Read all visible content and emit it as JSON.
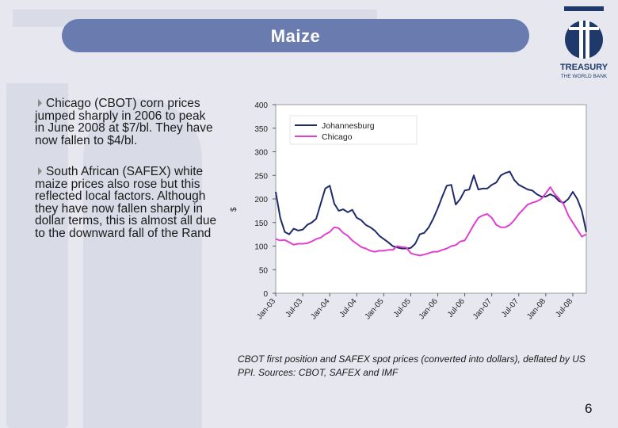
{
  "slide": {
    "title": "Maize",
    "page_number": "6",
    "bullets": [
      "Chicago (CBOT) corn prices jumped sharply in 2006 to peak in June 2008 at $7/bl. They have now fallen to $4/bl.",
      "South African (SAFEX) white maize prices also rose but this reflected local factors. Although they have now fallen sharply in dollar terms, this is almost all due to the downward fall of the Rand"
    ],
    "caption": "CBOT first position and SAFEX spot prices (converted into dollars), deflated by US PPI. Sources: CBOT, SAFEX and IMF",
    "logo": {
      "line1": "TREASURY",
      "line2": "THE WORLD BANK",
      "icon": "treasury-logo-icon"
    }
  },
  "colors": {
    "title_bar": "#6a7bb0",
    "johannesburg": "#1f2a6b",
    "chicago": "#e040d0",
    "accent": "#1f3a6a"
  },
  "chart_data": {
    "type": "line",
    "title": "",
    "xlabel": "",
    "ylabel": "$",
    "ylim": [
      0,
      400
    ],
    "yticks": [
      0,
      50,
      100,
      150,
      200,
      250,
      300,
      350,
      400
    ],
    "xticks": [
      "Jan-03",
      "Jul-03",
      "Jan-04",
      "Jul-04",
      "Jan-05",
      "Jul-05",
      "Jan-06",
      "Jul-06",
      "Jan-07",
      "Jul-07",
      "Jan-08",
      "Jul-08"
    ],
    "legend_position": "top-left",
    "x": [
      "Jan-03",
      "Feb-03",
      "Mar-03",
      "Apr-03",
      "May-03",
      "Jun-03",
      "Jul-03",
      "Aug-03",
      "Sep-03",
      "Oct-03",
      "Nov-03",
      "Dec-03",
      "Jan-04",
      "Feb-04",
      "Mar-04",
      "Apr-04",
      "May-04",
      "Jun-04",
      "Jul-04",
      "Aug-04",
      "Sep-04",
      "Oct-04",
      "Nov-04",
      "Dec-04",
      "Jan-05",
      "Feb-05",
      "Mar-05",
      "Apr-05",
      "May-05",
      "Jun-05",
      "Jul-05",
      "Aug-05",
      "Sep-05",
      "Oct-05",
      "Nov-05",
      "Dec-05",
      "Jan-06",
      "Feb-06",
      "Mar-06",
      "Apr-06",
      "May-06",
      "Jun-06",
      "Jul-06",
      "Aug-06",
      "Sep-06",
      "Oct-06",
      "Nov-06",
      "Dec-06",
      "Jan-07",
      "Feb-07",
      "Mar-07",
      "Apr-07",
      "May-07",
      "Jun-07",
      "Jul-07",
      "Aug-07",
      "Sep-07",
      "Oct-07",
      "Nov-07",
      "Dec-07",
      "Jan-08",
      "Feb-08",
      "Mar-08",
      "Apr-08",
      "May-08",
      "Jun-08",
      "Jul-08",
      "Aug-08",
      "Sep-08",
      "Oct-08"
    ],
    "series": [
      {
        "name": "Johannesburg",
        "values": [
          215,
          160,
          130,
          125,
          137,
          133,
          135,
          145,
          150,
          158,
          190,
          222,
          228,
          190,
          175,
          178,
          172,
          177,
          160,
          155,
          145,
          140,
          133,
          122,
          115,
          108,
          100,
          97,
          95,
          95,
          96,
          105,
          125,
          128,
          140,
          158,
          180,
          205,
          228,
          230,
          188,
          200,
          218,
          220,
          250,
          220,
          222,
          222,
          230,
          235,
          250,
          255,
          258,
          240,
          230,
          225,
          220,
          218,
          210,
          205,
          205,
          210,
          205,
          195,
          192,
          200,
          215,
          200,
          175,
          130
        ]
      },
      {
        "name": "Chicago",
        "values": [
          115,
          112,
          113,
          108,
          103,
          105,
          105,
          106,
          110,
          115,
          118,
          125,
          130,
          140,
          138,
          128,
          122,
          112,
          105,
          98,
          95,
          90,
          88,
          90,
          90,
          92,
          92,
          100,
          98,
          97,
          85,
          82,
          80,
          82,
          85,
          88,
          88,
          92,
          95,
          100,
          102,
          110,
          112,
          128,
          145,
          160,
          165,
          168,
          160,
          145,
          140,
          140,
          145,
          155,
          168,
          178,
          188,
          192,
          195,
          200,
          212,
          225,
          210,
          200,
          188,
          165,
          150,
          135,
          120,
          125
        ]
      }
    ]
  }
}
